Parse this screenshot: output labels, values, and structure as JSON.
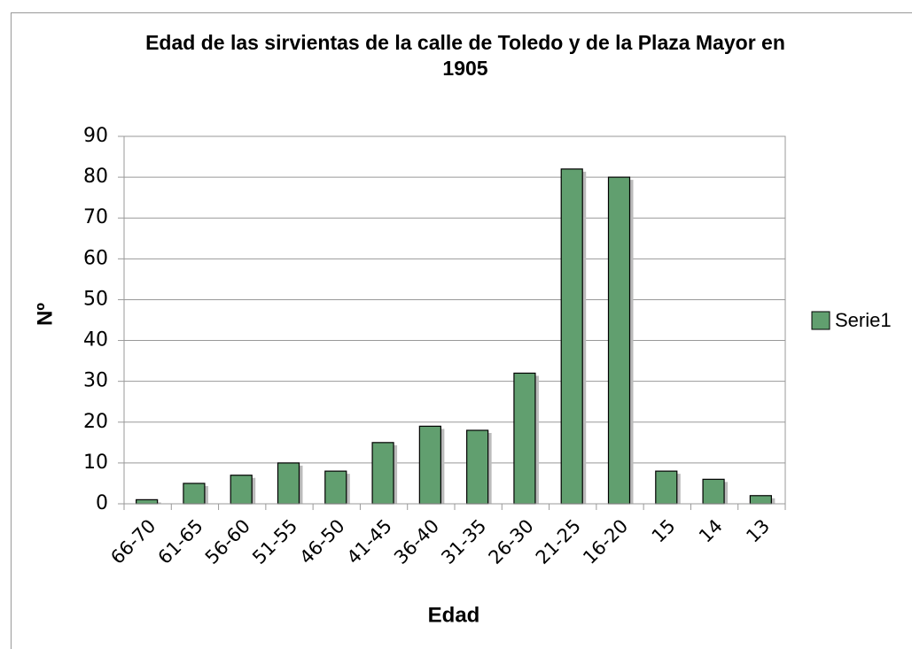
{
  "chart_data": {
    "type": "bar",
    "title": "Edad de las sirvientas de la calle de Toledo y de la Plaza Mayor en 1905",
    "x_label": "Edad",
    "y_label": "Nº",
    "categories": [
      "66-70",
      "61-65",
      "56-60",
      "51-55",
      "46-50",
      "41-45",
      "36-40",
      "31-35",
      "26-30",
      "21-25",
      "16-20",
      "15",
      "14",
      "13"
    ],
    "series": [
      {
        "name": "Serie1",
        "color": "#619f6f",
        "values": [
          1,
          5,
          7,
          10,
          8,
          15,
          19,
          18,
          32,
          82,
          80,
          8,
          6,
          2
        ]
      }
    ],
    "ylim": [
      0,
      90
    ],
    "yticks": [
      0,
      10,
      20,
      30,
      40,
      50,
      60,
      70,
      80,
      90
    ],
    "grid": true,
    "legend": "right"
  }
}
